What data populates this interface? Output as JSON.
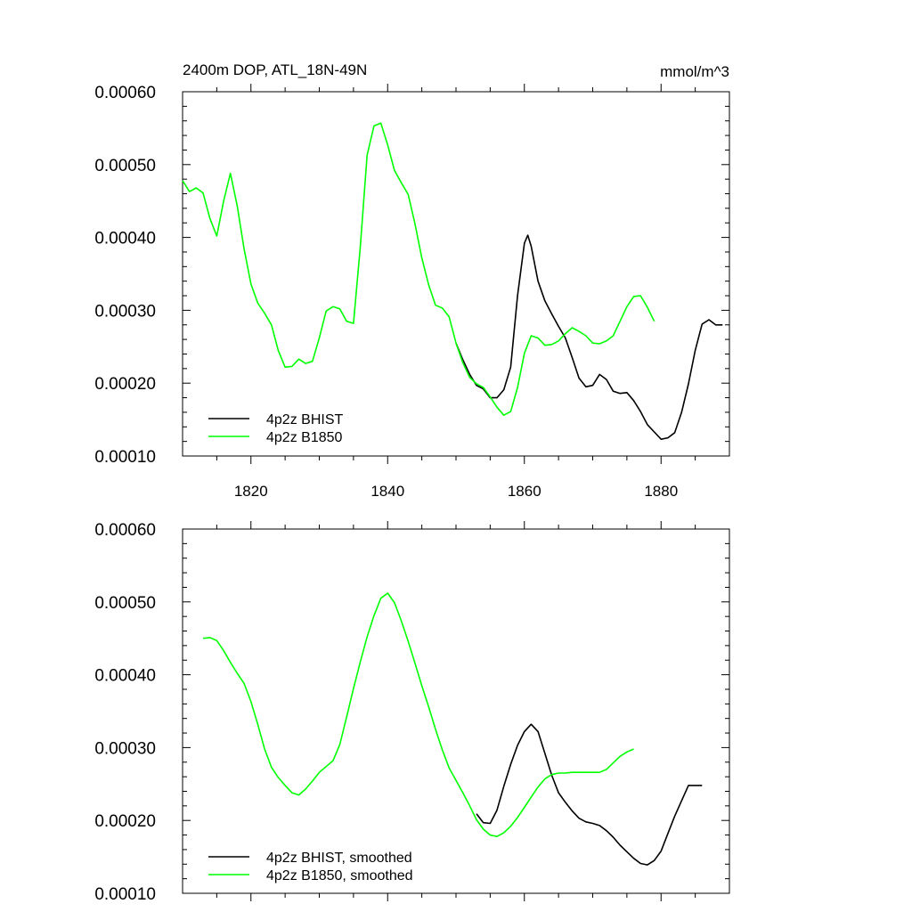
{
  "chart_data": [
    {
      "type": "line",
      "title": "2400m DOP, ATL_18N-49N",
      "units": "mmol/m^3",
      "xlim": [
        1810,
        1890
      ],
      "ylim": [
        0.0001,
        0.0006
      ],
      "yticks": [
        "0.00010",
        "0.00020",
        "0.00030",
        "0.00040",
        "0.00050",
        "0.00060"
      ],
      "xticks": [
        "1820",
        "1840",
        "1860",
        "1880"
      ],
      "legend_position": "bottom-left",
      "series": [
        {
          "name": "4p2z BHIST",
          "color": "#000000",
          "x": [
            1850,
            1851,
            1852,
            1853,
            1854,
            1855,
            1856,
            1857,
            1858,
            1859,
            1860,
            1860.5,
            1861,
            1862,
            1863,
            1864,
            1865,
            1866,
            1867,
            1868,
            1869,
            1870,
            1871,
            1872,
            1873,
            1874,
            1875,
            1876,
            1877,
            1878,
            1879,
            1880,
            1881,
            1882,
            1883,
            1884,
            1885,
            1886,
            1887,
            1888,
            1889
          ],
          "y": [
            0.000255,
            0.000232,
            0.000212,
            0.000197,
            0.000192,
            0.00018,
            0.00018,
            0.000191,
            0.000222,
            0.00032,
            0.000392,
            0.000403,
            0.000388,
            0.00034,
            0.000313,
            0.000295,
            0.000278,
            0.000262,
            0.000235,
            0.000207,
            0.000195,
            0.000197,
            0.000212,
            0.000205,
            0.000189,
            0.000186,
            0.000187,
            0.000176,
            0.000161,
            0.000143,
            0.000133,
            0.000123,
            0.000125,
            0.000132,
            0.00016,
            0.000199,
            0.000245,
            0.000281,
            0.000287,
            0.00028,
            0.00028
          ]
        },
        {
          "name": "4p2z B1850",
          "color": "#00ff00",
          "x": [
            1810,
            1811,
            1812,
            1813,
            1814,
            1815,
            1816,
            1817,
            1818,
            1819,
            1820,
            1821,
            1822,
            1823,
            1824,
            1825,
            1826,
            1827,
            1828,
            1829,
            1830,
            1831,
            1832,
            1833,
            1834,
            1835,
            1836,
            1837,
            1838,
            1839,
            1840,
            1841,
            1842,
            1843,
            1844,
            1845,
            1846,
            1847,
            1848,
            1849,
            1850,
            1851,
            1852,
            1853,
            1854,
            1855,
            1856,
            1857,
            1858,
            1859,
            1860,
            1861,
            1862,
            1863,
            1864,
            1865,
            1866,
            1867,
            1868,
            1869,
            1870,
            1871,
            1872,
            1873,
            1874,
            1875,
            1876,
            1877,
            1878,
            1879
          ],
          "y": [
            0.000478,
            0.000463,
            0.000468,
            0.000461,
            0.000426,
            0.000402,
            0.00045,
            0.000488,
            0.000443,
            0.000384,
            0.000336,
            0.00031,
            0.000296,
            0.00028,
            0.000245,
            0.000222,
            0.000223,
            0.000233,
            0.000227,
            0.00023,
            0.000262,
            0.000299,
            0.000305,
            0.000302,
            0.000285,
            0.000282,
            0.000388,
            0.000513,
            0.000553,
            0.000557,
            0.000527,
            0.000492,
            0.000475,
            0.000459,
            0.000419,
            0.000372,
            0.000335,
            0.000307,
            0.000303,
            0.000291,
            0.000255,
            0.000228,
            0.000208,
            0.000199,
            0.000194,
            0.000181,
            0.000167,
            0.000156,
            0.000161,
            0.000194,
            0.000241,
            0.000265,
            0.000262,
            0.000252,
            0.000253,
            0.000258,
            0.000268,
            0.000276,
            0.000271,
            0.000265,
            0.000255,
            0.000254,
            0.000258,
            0.000265,
            0.000285,
            0.000305,
            0.000319,
            0.00032,
            0.000304,
            0.000285
          ]
        }
      ]
    },
    {
      "type": "line",
      "xlim": [
        1810,
        1890
      ],
      "ylim": [
        0.0001,
        0.0006
      ],
      "yticks": [
        "0.00010",
        "0.00020",
        "0.00030",
        "0.00040",
        "0.00050",
        "0.00060"
      ],
      "legend_position": "bottom-left",
      "series": [
        {
          "name": "4p2z BHIST, smoothed",
          "color": "#000000",
          "x": [
            1853,
            1854,
            1855,
            1856,
            1857,
            1858,
            1859,
            1860,
            1861,
            1862,
            1863,
            1864,
            1865,
            1866,
            1867,
            1868,
            1869,
            1870,
            1871,
            1872,
            1873,
            1874,
            1875,
            1876,
            1877,
            1878,
            1879,
            1880,
            1881,
            1882,
            1883,
            1884,
            1885,
            1886
          ],
          "y": [
            0.000209,
            0.000197,
            0.000196,
            0.000214,
            0.000247,
            0.000277,
            0.000303,
            0.000322,
            0.000332,
            0.000322,
            0.000292,
            0.000262,
            0.000238,
            0.000225,
            0.000213,
            0.000203,
            0.000198,
            0.000196,
            0.000193,
            0.000186,
            0.000177,
            0.000166,
            0.000157,
            0.000148,
            0.000141,
            0.000139,
            0.000145,
            0.000158,
            0.000182,
            0.000206,
            0.000227,
            0.000248,
            0.000248,
            0.000248
          ]
        },
        {
          "name": "4p2z B1850, smoothed",
          "color": "#00ff00",
          "x": [
            1813,
            1814,
            1815,
            1816,
            1817,
            1818,
            1819,
            1820,
            1821,
            1822,
            1823,
            1824,
            1825,
            1826,
            1827,
            1828,
            1829,
            1830,
            1831,
            1832,
            1833,
            1834,
            1835,
            1836,
            1837,
            1838,
            1839,
            1840,
            1841,
            1842,
            1843,
            1844,
            1845,
            1846,
            1847,
            1848,
            1849,
            1850,
            1851,
            1852,
            1853,
            1854,
            1855,
            1856,
            1857,
            1858,
            1859,
            1860,
            1861,
            1862,
            1863,
            1864,
            1865,
            1866,
            1867,
            1868,
            1869,
            1870,
            1871,
            1872,
            1873,
            1874,
            1875,
            1876
          ],
          "y": [
            0.00045,
            0.000451,
            0.000447,
            0.000433,
            0.000417,
            0.000402,
            0.000388,
            0.000363,
            0.000332,
            0.000298,
            0.000273,
            0.000259,
            0.000248,
            0.000238,
            0.000235,
            0.000243,
            0.000254,
            0.000266,
            0.000274,
            0.000282,
            0.000304,
            0.000342,
            0.000381,
            0.000418,
            0.000452,
            0.000481,
            0.000505,
            0.000512,
            0.000499,
            0.000474,
            0.000446,
            0.000416,
            0.000385,
            0.000356,
            0.000325,
            0.000297,
            0.000272,
            0.000255,
            0.000238,
            0.00022,
            0.000201,
            0.000188,
            0.00018,
            0.000178,
            0.000183,
            0.000192,
            0.000204,
            0.000218,
            0.000232,
            0.000246,
            0.000257,
            0.000263,
            0.000265,
            0.000265,
            0.000266,
            0.000266,
            0.000266,
            0.000266,
            0.000266,
            0.00027,
            0.000279,
            0.000288,
            0.000294,
            0.000298
          ]
        }
      ]
    }
  ]
}
